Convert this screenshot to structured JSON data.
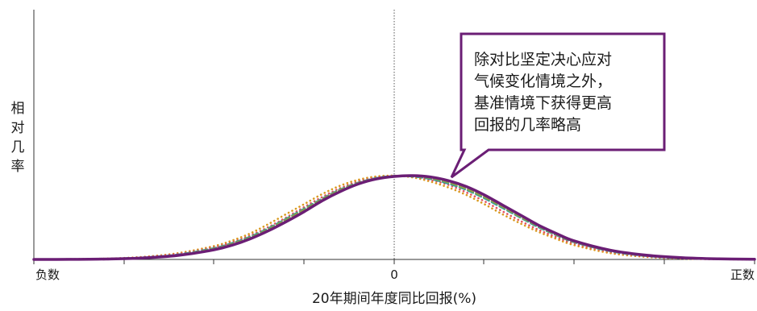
{
  "chart_data": {
    "type": "line",
    "title": "",
    "xlabel": "20年期间年度同比回报(%)",
    "ylabel": "相对几率",
    "x_tick_labels": [
      "负数",
      "0",
      "正数"
    ],
    "xlim": [
      -1,
      1
    ],
    "ylim": [
      0,
      1
    ],
    "grid": false,
    "legend": "none",
    "annotation": {
      "lines": [
        "除对比坚定决心应对",
        "气候变化情境之外，",
        "基准情境下获得更高",
        "回报的几率略高"
      ]
    },
    "series": [
      {
        "color": "#6b1e75",
        "style": "solid",
        "x": [
          -1.0,
          -0.9,
          -0.8,
          -0.7,
          -0.6,
          -0.5,
          -0.45,
          -0.4,
          -0.35,
          -0.3,
          -0.25,
          -0.2,
          -0.15,
          -0.1,
          -0.05,
          0.0,
          0.05,
          0.1,
          0.15,
          0.2,
          0.25,
          0.3,
          0.35,
          0.4,
          0.45,
          0.5,
          0.6,
          0.7,
          0.8,
          0.9,
          1.0
        ],
        "y": [
          0.0,
          0.001,
          0.005,
          0.017,
          0.048,
          0.115,
          0.17,
          0.245,
          0.34,
          0.45,
          0.57,
          0.7,
          0.81,
          0.9,
          0.96,
          0.99,
          1.0,
          0.985,
          0.94,
          0.87,
          0.77,
          0.65,
          0.53,
          0.41,
          0.31,
          0.22,
          0.11,
          0.05,
          0.02,
          0.007,
          0.002
        ]
      },
      {
        "color": "#d99a1f",
        "style": "dotted",
        "x": [
          -1.0,
          -0.9,
          -0.8,
          -0.7,
          -0.6,
          -0.5,
          -0.45,
          -0.4,
          -0.35,
          -0.3,
          -0.25,
          -0.2,
          -0.15,
          -0.1,
          -0.05,
          0.0,
          0.05,
          0.1,
          0.15,
          0.2,
          0.25,
          0.3,
          0.35,
          0.4,
          0.45,
          0.5,
          0.6,
          0.7,
          0.8,
          0.9,
          1.0
        ],
        "y": [
          0.001,
          0.003,
          0.01,
          0.03,
          0.075,
          0.16,
          0.225,
          0.31,
          0.42,
          0.54,
          0.66,
          0.78,
          0.88,
          0.95,
          0.99,
          1.0,
          0.98,
          0.93,
          0.86,
          0.77,
          0.66,
          0.54,
          0.43,
          0.33,
          0.245,
          0.17,
          0.075,
          0.03,
          0.01,
          0.003,
          0.001
        ]
      },
      {
        "color": "#e2525f",
        "style": "dotted",
        "x": [
          -1.0,
          -0.9,
          -0.8,
          -0.7,
          -0.6,
          -0.5,
          -0.45,
          -0.4,
          -0.35,
          -0.3,
          -0.25,
          -0.2,
          -0.15,
          -0.1,
          -0.05,
          0.0,
          0.05,
          0.1,
          0.15,
          0.2,
          0.25,
          0.3,
          0.35,
          0.4,
          0.45,
          0.5,
          0.6,
          0.7,
          0.8,
          0.9,
          1.0
        ],
        "y": [
          0.001,
          0.003,
          0.009,
          0.026,
          0.066,
          0.145,
          0.205,
          0.285,
          0.385,
          0.5,
          0.625,
          0.745,
          0.85,
          0.93,
          0.975,
          0.995,
          0.99,
          0.95,
          0.89,
          0.8,
          0.695,
          0.575,
          0.46,
          0.355,
          0.265,
          0.19,
          0.09,
          0.037,
          0.013,
          0.004,
          0.001
        ]
      },
      {
        "color": "#1f4e9c",
        "style": "dashed",
        "x": [
          -1.0,
          -0.9,
          -0.8,
          -0.7,
          -0.6,
          -0.5,
          -0.45,
          -0.4,
          -0.35,
          -0.3,
          -0.25,
          -0.2,
          -0.15,
          -0.1,
          -0.05,
          0.0,
          0.05,
          0.1,
          0.15,
          0.2,
          0.25,
          0.3,
          0.35,
          0.4,
          0.45,
          0.5,
          0.6,
          0.7,
          0.8,
          0.9,
          1.0
        ],
        "y": [
          0.0,
          0.002,
          0.007,
          0.021,
          0.056,
          0.13,
          0.19,
          0.265,
          0.365,
          0.48,
          0.6,
          0.72,
          0.83,
          0.915,
          0.97,
          0.995,
          0.995,
          0.965,
          0.91,
          0.835,
          0.735,
          0.62,
          0.5,
          0.39,
          0.29,
          0.21,
          0.1,
          0.043,
          0.016,
          0.005,
          0.001
        ]
      },
      {
        "color": "#2a9d9a",
        "style": "dashed",
        "x": [
          -1.0,
          -0.9,
          -0.8,
          -0.7,
          -0.6,
          -0.5,
          -0.45,
          -0.4,
          -0.35,
          -0.3,
          -0.25,
          -0.2,
          -0.15,
          -0.1,
          -0.05,
          0.0,
          0.05,
          0.1,
          0.15,
          0.2,
          0.25,
          0.3,
          0.35,
          0.4,
          0.45,
          0.5,
          0.6,
          0.7,
          0.8,
          0.9,
          1.0
        ],
        "y": [
          0.0,
          0.002,
          0.007,
          0.022,
          0.058,
          0.135,
          0.195,
          0.27,
          0.37,
          0.485,
          0.605,
          0.725,
          0.835,
          0.915,
          0.97,
          0.995,
          0.99,
          0.96,
          0.905,
          0.83,
          0.73,
          0.615,
          0.5,
          0.385,
          0.29,
          0.205,
          0.098,
          0.041,
          0.015,
          0.005,
          0.001
        ]
      },
      {
        "color": "#b98cc0",
        "style": "dashed",
        "x": [
          -1.0,
          -0.9,
          -0.8,
          -0.7,
          -0.6,
          -0.5,
          -0.45,
          -0.4,
          -0.35,
          -0.3,
          -0.25,
          -0.2,
          -0.15,
          -0.1,
          -0.05,
          0.0,
          0.05,
          0.1,
          0.15,
          0.2,
          0.25,
          0.3,
          0.35,
          0.4,
          0.45,
          0.5,
          0.6,
          0.7,
          0.8,
          0.9,
          1.0
        ],
        "y": [
          0.0,
          0.002,
          0.006,
          0.019,
          0.052,
          0.125,
          0.183,
          0.258,
          0.355,
          0.47,
          0.59,
          0.715,
          0.825,
          0.91,
          0.965,
          0.995,
          0.997,
          0.975,
          0.925,
          0.85,
          0.75,
          0.635,
          0.515,
          0.4,
          0.3,
          0.215,
          0.105,
          0.046,
          0.018,
          0.006,
          0.002
        ]
      },
      {
        "color": "#8aa04a",
        "style": "dashed",
        "x": [
          -1.0,
          -0.9,
          -0.8,
          -0.7,
          -0.6,
          -0.5,
          -0.45,
          -0.4,
          -0.35,
          -0.3,
          -0.25,
          -0.2,
          -0.15,
          -0.1,
          -0.05,
          0.0,
          0.05,
          0.1,
          0.15,
          0.2,
          0.25,
          0.3,
          0.35,
          0.4,
          0.45,
          0.5,
          0.6,
          0.7,
          0.8,
          0.9,
          1.0
        ],
        "y": [
          0.0,
          0.002,
          0.007,
          0.02,
          0.054,
          0.128,
          0.187,
          0.262,
          0.36,
          0.475,
          0.595,
          0.718,
          0.828,
          0.912,
          0.967,
          0.994,
          0.996,
          0.97,
          0.918,
          0.842,
          0.742,
          0.628,
          0.508,
          0.395,
          0.295,
          0.21,
          0.102,
          0.044,
          0.017,
          0.006,
          0.002
        ]
      }
    ]
  }
}
